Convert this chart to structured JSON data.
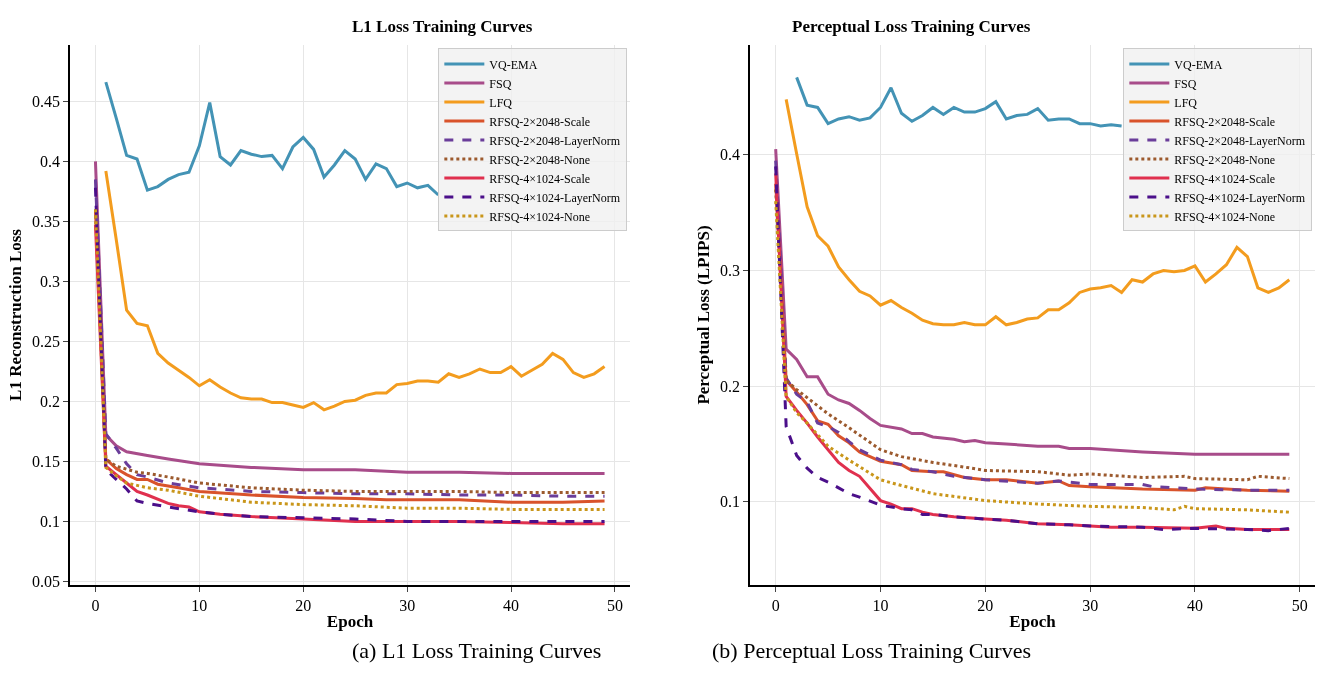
{
  "chart_data": [
    {
      "type": "line",
      "title": "L1 Loss Training Curves",
      "xlabel": "Epoch",
      "ylabel": "L1 Reconstruction Loss",
      "xlim": [
        -2.45,
        51.45
      ],
      "xticks": [
        0,
        10,
        20,
        30,
        40,
        50
      ],
      "ylim": [
        0.047,
        0.497
      ],
      "yticks": [
        0.05,
        0.1,
        0.15,
        0.2,
        0.25,
        0.3,
        0.35,
        0.4,
        0.45
      ],
      "grid": true,
      "legend": "top right",
      "annotations": [
        "(a) L1 Loss Training Curves"
      ],
      "series": [
        {
          "name": "VQ-EMA",
          "color": "#4393b5",
          "line_style": "solid",
          "x": [
            1,
            2,
            3,
            4,
            5,
            6,
            7,
            8,
            9,
            10,
            11,
            12,
            13,
            14,
            15,
            16,
            17,
            18,
            19,
            20,
            21,
            22,
            23,
            24,
            25,
            26,
            27,
            28,
            29,
            30,
            31,
            32,
            33
          ],
          "values": [
            0.466,
            0.436,
            0.405,
            0.402,
            0.376,
            0.379,
            0.385,
            0.389,
            0.391,
            0.413,
            0.449,
            0.404,
            0.397,
            0.409,
            0.406,
            0.404,
            0.405,
            0.394,
            0.412,
            0.42,
            0.41,
            0.387,
            0.397,
            0.409,
            0.402,
            0.385,
            0.398,
            0.394,
            0.379,
            0.382,
            0.378,
            0.38,
            0.372
          ]
        },
        {
          "name": "FSQ",
          "color": "#a84c8a",
          "line_style": "solid",
          "x": [
            0,
            1,
            2,
            3,
            5,
            7,
            10,
            15,
            20,
            25,
            30,
            35,
            40,
            45,
            49
          ],
          "values": [
            0.4,
            0.172,
            0.163,
            0.158,
            0.155,
            0.152,
            0.148,
            0.145,
            0.143,
            0.143,
            0.141,
            0.141,
            0.14,
            0.14,
            0.14
          ]
        },
        {
          "name": "LFQ",
          "color": "#f39c1e",
          "line_style": "solid",
          "x": [
            1,
            2,
            3,
            4,
            5,
            6,
            7,
            8,
            9,
            10,
            11,
            12,
            13,
            14,
            15,
            16,
            17,
            18,
            19,
            20,
            21,
            22,
            23,
            24,
            25,
            26,
            27,
            28,
            29,
            30,
            31,
            32,
            33,
            34,
            35,
            36,
            37,
            38,
            39,
            40,
            41,
            42,
            43,
            44,
            45,
            46,
            47,
            48,
            49
          ],
          "values": [
            0.392,
            0.335,
            0.276,
            0.265,
            0.263,
            0.24,
            0.232,
            0.226,
            0.22,
            0.213,
            0.218,
            0.212,
            0.207,
            0.203,
            0.202,
            0.202,
            0.199,
            0.199,
            0.197,
            0.195,
            0.199,
            0.193,
            0.196,
            0.2,
            0.201,
            0.205,
            0.207,
            0.207,
            0.214,
            0.215,
            0.217,
            0.217,
            0.216,
            0.223,
            0.22,
            0.223,
            0.227,
            0.224,
            0.224,
            0.229,
            0.221,
            0.226,
            0.231,
            0.24,
            0.235,
            0.224,
            0.22,
            0.223,
            0.229
          ]
        },
        {
          "name": "RFSQ-2×2048-Scale",
          "color": "#d9532b",
          "line_style": "solid",
          "x": [
            0,
            1,
            2,
            3,
            4,
            5,
            6,
            8,
            10,
            15,
            20,
            25,
            28,
            30,
            35,
            40,
            45,
            49
          ],
          "values": [
            0.359,
            0.152,
            0.144,
            0.139,
            0.135,
            0.135,
            0.131,
            0.128,
            0.125,
            0.122,
            0.12,
            0.119,
            0.118,
            0.118,
            0.118,
            0.116,
            0.116,
            0.117
          ]
        },
        {
          "name": "RFSQ-2×2048-LayerNorm",
          "color": "#6a3d9a",
          "line_style": "dashed",
          "x": [
            0,
            1,
            2,
            3,
            4,
            5,
            7,
            10,
            15,
            20,
            25,
            30,
            35,
            40,
            45,
            49
          ],
          "values": [
            0.385,
            0.173,
            0.161,
            0.148,
            0.139,
            0.137,
            0.132,
            0.128,
            0.125,
            0.124,
            0.123,
            0.123,
            0.122,
            0.122,
            0.121,
            0.121
          ]
        },
        {
          "name": "RFSQ-2×2048-None",
          "color": "#9c5a2e",
          "line_style": "dotted",
          "x": [
            0,
            1,
            2,
            4,
            5,
            7,
            10,
            15,
            20,
            25,
            30,
            35,
            40,
            45,
            49
          ],
          "values": [
            0.36,
            0.152,
            0.146,
            0.141,
            0.14,
            0.137,
            0.132,
            0.128,
            0.126,
            0.125,
            0.125,
            0.125,
            0.124,
            0.124,
            0.124
          ]
        },
        {
          "name": "RFSQ-4×1024-Scale",
          "color": "#e0304e",
          "line_style": "solid",
          "x": [
            0,
            1,
            2,
            3,
            4,
            5,
            7,
            8,
            9,
            10,
            12,
            15,
            20,
            25,
            30,
            35,
            40,
            45,
            49
          ],
          "values": [
            0.347,
            0.146,
            0.139,
            0.132,
            0.125,
            0.122,
            0.115,
            0.113,
            0.112,
            0.108,
            0.106,
            0.104,
            0.102,
            0.1,
            0.1,
            0.1,
            0.099,
            0.098,
            0.098
          ]
        },
        {
          "name": "RFSQ-4×1024-LayerNorm",
          "color": "#4b0f8a",
          "line_style": "dashed",
          "x": [
            0,
            1,
            2,
            3,
            4,
            5,
            7,
            10,
            12,
            15,
            20,
            25,
            30,
            35,
            40,
            45,
            49
          ],
          "values": [
            0.378,
            0.143,
            0.135,
            0.127,
            0.117,
            0.115,
            0.112,
            0.108,
            0.106,
            0.104,
            0.103,
            0.102,
            0.1,
            0.1,
            0.1,
            0.1,
            0.1
          ]
        },
        {
          "name": "RFSQ-4×1024-None",
          "color": "#c9961a",
          "line_style": "dotted",
          "x": [
            0,
            1,
            2,
            3,
            4,
            5,
            7,
            10,
            15,
            20,
            25,
            30,
            35,
            40,
            45,
            49
          ],
          "values": [
            0.36,
            0.145,
            0.138,
            0.132,
            0.13,
            0.128,
            0.126,
            0.121,
            0.116,
            0.114,
            0.113,
            0.111,
            0.111,
            0.11,
            0.11,
            0.11
          ]
        }
      ]
    },
    {
      "type": "line",
      "title": "Perceptual Loss Training Curves",
      "xlabel": "Epoch",
      "ylabel": "Perceptual Loss (LPIPS)",
      "xlim": [
        -2.45,
        51.45
      ],
      "xticks": [
        0,
        10,
        20,
        30,
        40,
        50
      ],
      "ylim": [
        0.028,
        0.495
      ],
      "yticks": [
        0.1,
        0.2,
        0.3,
        0.4
      ],
      "grid": true,
      "legend": "top right",
      "annotations": [
        "(b) Perceptual Loss Training Curves"
      ],
      "series": [
        {
          "name": "VQ-EMA",
          "color": "#4393b5",
          "line_style": "solid",
          "x": [
            2,
            3,
            4,
            5,
            6,
            7,
            8,
            9,
            10,
            11,
            12,
            13,
            14,
            15,
            16,
            17,
            18,
            19,
            20,
            21,
            22,
            23,
            24,
            25,
            26,
            27,
            28,
            29,
            30,
            31,
            32,
            33
          ],
          "values": [
            0.467,
            0.443,
            0.441,
            0.427,
            0.431,
            0.433,
            0.43,
            0.432,
            0.441,
            0.458,
            0.436,
            0.429,
            0.434,
            0.441,
            0.435,
            0.441,
            0.437,
            0.437,
            0.44,
            0.446,
            0.431,
            0.434,
            0.435,
            0.44,
            0.43,
            0.431,
            0.431,
            0.427,
            0.427,
            0.425,
            0.426,
            0.425
          ]
        },
        {
          "name": "FSQ",
          "color": "#a84c8a",
          "line_style": "solid",
          "x": [
            0,
            1,
            2,
            3,
            4,
            5,
            6,
            7,
            8,
            9,
            10,
            12,
            13,
            14,
            15,
            17,
            18,
            19,
            20,
            22,
            25,
            27,
            28,
            30,
            35,
            40,
            45,
            49
          ],
          "values": [
            0.405,
            0.232,
            0.223,
            0.208,
            0.208,
            0.193,
            0.188,
            0.185,
            0.179,
            0.172,
            0.166,
            0.163,
            0.159,
            0.159,
            0.156,
            0.154,
            0.152,
            0.153,
            0.151,
            0.15,
            0.148,
            0.148,
            0.146,
            0.146,
            0.143,
            0.141,
            0.141,
            0.141
          ]
        },
        {
          "name": "LFQ",
          "color": "#f39c1e",
          "line_style": "solid",
          "x": [
            1,
            2,
            3,
            4,
            5,
            6,
            7,
            8,
            9,
            10,
            11,
            12,
            13,
            14,
            15,
            16,
            17,
            18,
            19,
            20,
            21,
            22,
            23,
            24,
            25,
            26,
            27,
            28,
            29,
            30,
            31,
            32,
            33,
            34,
            35,
            36,
            37,
            38,
            39,
            40,
            41,
            42,
            43,
            44,
            45,
            46,
            47,
            48,
            49
          ],
          "values": [
            0.448,
            0.401,
            0.355,
            0.33,
            0.321,
            0.303,
            0.292,
            0.282,
            0.278,
            0.27,
            0.274,
            0.268,
            0.263,
            0.257,
            0.254,
            0.253,
            0.253,
            0.255,
            0.253,
            0.253,
            0.26,
            0.253,
            0.255,
            0.258,
            0.259,
            0.266,
            0.266,
            0.272,
            0.281,
            0.284,
            0.285,
            0.287,
            0.281,
            0.292,
            0.29,
            0.297,
            0.3,
            0.299,
            0.3,
            0.304,
            0.29,
            0.297,
            0.305,
            0.32,
            0.312,
            0.285,
            0.281,
            0.285,
            0.292
          ]
        },
        {
          "name": "RFSQ-2×2048-Scale",
          "color": "#d9532b",
          "line_style": "solid",
          "x": [
            0,
            1,
            2,
            3,
            4,
            5,
            6,
            7,
            8,
            9,
            10,
            12,
            13,
            15,
            16,
            18,
            20,
            22,
            25,
            27,
            28,
            30,
            35,
            40,
            41,
            45,
            49
          ],
          "values": [
            0.375,
            0.205,
            0.195,
            0.184,
            0.17,
            0.167,
            0.157,
            0.151,
            0.143,
            0.139,
            0.135,
            0.132,
            0.127,
            0.126,
            0.126,
            0.121,
            0.119,
            0.119,
            0.116,
            0.118,
            0.114,
            0.113,
            0.111,
            0.11,
            0.112,
            0.11,
            0.109
          ]
        },
        {
          "name": "RFSQ-2×2048-LayerNorm",
          "color": "#6a3d9a",
          "line_style": "dashed",
          "x": [
            0,
            1,
            2,
            3,
            4,
            5,
            6,
            7,
            8,
            10,
            12,
            13,
            15,
            17,
            20,
            25,
            27,
            30,
            35,
            36,
            40,
            45,
            49
          ],
          "values": [
            0.395,
            0.207,
            0.193,
            0.186,
            0.168,
            0.165,
            0.16,
            0.152,
            0.145,
            0.136,
            0.132,
            0.128,
            0.126,
            0.122,
            0.119,
            0.116,
            0.118,
            0.115,
            0.115,
            0.113,
            0.111,
            0.11,
            0.11
          ]
        },
        {
          "name": "RFSQ-2×2048-None",
          "color": "#9c5a2e",
          "line_style": "dotted",
          "x": [
            0,
            1,
            2,
            3,
            4,
            5,
            7,
            10,
            12,
            15,
            18,
            20,
            25,
            28,
            30,
            35,
            39,
            40,
            45,
            46,
            49
          ],
          "values": [
            0.37,
            0.205,
            0.197,
            0.19,
            0.183,
            0.176,
            0.164,
            0.145,
            0.139,
            0.134,
            0.13,
            0.127,
            0.126,
            0.123,
            0.124,
            0.121,
            0.122,
            0.12,
            0.119,
            0.122,
            0.12
          ]
        },
        {
          "name": "RFSQ-4×1024-Scale",
          "color": "#e0304e",
          "line_style": "solid",
          "x": [
            0,
            1,
            2,
            3,
            4,
            5,
            6,
            7,
            8,
            10,
            11,
            12,
            13,
            14,
            15,
            17,
            20,
            22,
            25,
            28,
            30,
            32,
            35,
            40,
            42,
            43,
            45,
            49
          ],
          "values": [
            0.384,
            0.191,
            0.179,
            0.168,
            0.156,
            0.145,
            0.134,
            0.127,
            0.122,
            0.101,
            0.098,
            0.094,
            0.094,
            0.091,
            0.089,
            0.087,
            0.085,
            0.084,
            0.081,
            0.08,
            0.079,
            0.078,
            0.078,
            0.077,
            0.079,
            0.077,
            0.076,
            0.076
          ]
        },
        {
          "name": "RFSQ-4×1024-LayerNorm",
          "color": "#4b0f8a",
          "line_style": "dashed",
          "x": [
            0,
            1,
            2,
            3,
            4,
            5,
            6,
            7,
            8,
            10,
            12,
            13,
            14,
            15,
            17,
            20,
            22,
            25,
            28,
            30,
            35,
            37,
            40,
            45,
            47,
            49
          ],
          "values": [
            0.39,
            0.165,
            0.14,
            0.129,
            0.121,
            0.117,
            0.112,
            0.107,
            0.104,
            0.097,
            0.094,
            0.093,
            0.089,
            0.089,
            0.087,
            0.085,
            0.084,
            0.081,
            0.08,
            0.079,
            0.078,
            0.076,
            0.077,
            0.076,
            0.075,
            0.077
          ]
        },
        {
          "name": "RFSQ-4×1024-None",
          "color": "#c9961a",
          "line_style": "dotted",
          "x": [
            0,
            1,
            2,
            3,
            4,
            5,
            7,
            10,
            12,
            15,
            20,
            25,
            30,
            35,
            38,
            39,
            40,
            45,
            49
          ],
          "values": [
            0.36,
            0.191,
            0.177,
            0.168,
            0.158,
            0.148,
            0.136,
            0.119,
            0.114,
            0.107,
            0.101,
            0.098,
            0.096,
            0.095,
            0.093,
            0.096,
            0.094,
            0.093,
            0.091
          ]
        }
      ]
    }
  ]
}
